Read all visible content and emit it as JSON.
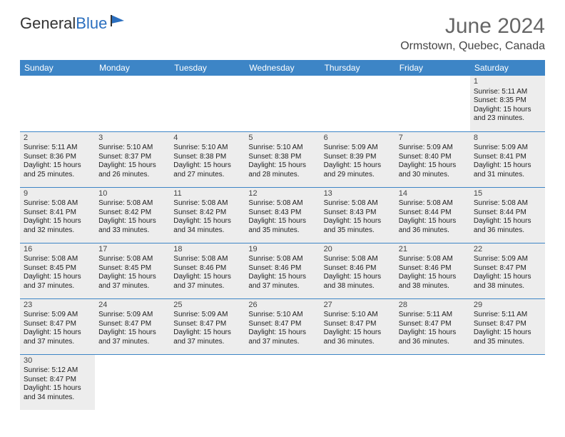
{
  "logo": {
    "text1": "General",
    "text2": "Blue"
  },
  "title": {
    "month": "June 2024",
    "location": "Ormstown, Quebec, Canada"
  },
  "colors": {
    "header_bg": "#3d85c6",
    "row_bg": "#ededed",
    "border": "#3d85c6"
  },
  "calendar": {
    "columns": [
      "Sunday",
      "Monday",
      "Tuesday",
      "Wednesday",
      "Thursday",
      "Friday",
      "Saturday"
    ],
    "weeks": [
      [
        null,
        null,
        null,
        null,
        null,
        null,
        {
          "n": "1",
          "sr": "Sunrise: 5:11 AM",
          "ss": "Sunset: 8:35 PM",
          "d1": "Daylight: 15 hours",
          "d2": "and 23 minutes."
        }
      ],
      [
        {
          "n": "2",
          "sr": "Sunrise: 5:11 AM",
          "ss": "Sunset: 8:36 PM",
          "d1": "Daylight: 15 hours",
          "d2": "and 25 minutes."
        },
        {
          "n": "3",
          "sr": "Sunrise: 5:10 AM",
          "ss": "Sunset: 8:37 PM",
          "d1": "Daylight: 15 hours",
          "d2": "and 26 minutes."
        },
        {
          "n": "4",
          "sr": "Sunrise: 5:10 AM",
          "ss": "Sunset: 8:38 PM",
          "d1": "Daylight: 15 hours",
          "d2": "and 27 minutes."
        },
        {
          "n": "5",
          "sr": "Sunrise: 5:10 AM",
          "ss": "Sunset: 8:38 PM",
          "d1": "Daylight: 15 hours",
          "d2": "and 28 minutes."
        },
        {
          "n": "6",
          "sr": "Sunrise: 5:09 AM",
          "ss": "Sunset: 8:39 PM",
          "d1": "Daylight: 15 hours",
          "d2": "and 29 minutes."
        },
        {
          "n": "7",
          "sr": "Sunrise: 5:09 AM",
          "ss": "Sunset: 8:40 PM",
          "d1": "Daylight: 15 hours",
          "d2": "and 30 minutes."
        },
        {
          "n": "8",
          "sr": "Sunrise: 5:09 AM",
          "ss": "Sunset: 8:41 PM",
          "d1": "Daylight: 15 hours",
          "d2": "and 31 minutes."
        }
      ],
      [
        {
          "n": "9",
          "sr": "Sunrise: 5:08 AM",
          "ss": "Sunset: 8:41 PM",
          "d1": "Daylight: 15 hours",
          "d2": "and 32 minutes."
        },
        {
          "n": "10",
          "sr": "Sunrise: 5:08 AM",
          "ss": "Sunset: 8:42 PM",
          "d1": "Daylight: 15 hours",
          "d2": "and 33 minutes."
        },
        {
          "n": "11",
          "sr": "Sunrise: 5:08 AM",
          "ss": "Sunset: 8:42 PM",
          "d1": "Daylight: 15 hours",
          "d2": "and 34 minutes."
        },
        {
          "n": "12",
          "sr": "Sunrise: 5:08 AM",
          "ss": "Sunset: 8:43 PM",
          "d1": "Daylight: 15 hours",
          "d2": "and 35 minutes."
        },
        {
          "n": "13",
          "sr": "Sunrise: 5:08 AM",
          "ss": "Sunset: 8:43 PM",
          "d1": "Daylight: 15 hours",
          "d2": "and 35 minutes."
        },
        {
          "n": "14",
          "sr": "Sunrise: 5:08 AM",
          "ss": "Sunset: 8:44 PM",
          "d1": "Daylight: 15 hours",
          "d2": "and 36 minutes."
        },
        {
          "n": "15",
          "sr": "Sunrise: 5:08 AM",
          "ss": "Sunset: 8:44 PM",
          "d1": "Daylight: 15 hours",
          "d2": "and 36 minutes."
        }
      ],
      [
        {
          "n": "16",
          "sr": "Sunrise: 5:08 AM",
          "ss": "Sunset: 8:45 PM",
          "d1": "Daylight: 15 hours",
          "d2": "and 37 minutes."
        },
        {
          "n": "17",
          "sr": "Sunrise: 5:08 AM",
          "ss": "Sunset: 8:45 PM",
          "d1": "Daylight: 15 hours",
          "d2": "and 37 minutes."
        },
        {
          "n": "18",
          "sr": "Sunrise: 5:08 AM",
          "ss": "Sunset: 8:46 PM",
          "d1": "Daylight: 15 hours",
          "d2": "and 37 minutes."
        },
        {
          "n": "19",
          "sr": "Sunrise: 5:08 AM",
          "ss": "Sunset: 8:46 PM",
          "d1": "Daylight: 15 hours",
          "d2": "and 37 minutes."
        },
        {
          "n": "20",
          "sr": "Sunrise: 5:08 AM",
          "ss": "Sunset: 8:46 PM",
          "d1": "Daylight: 15 hours",
          "d2": "and 38 minutes."
        },
        {
          "n": "21",
          "sr": "Sunrise: 5:08 AM",
          "ss": "Sunset: 8:46 PM",
          "d1": "Daylight: 15 hours",
          "d2": "and 38 minutes."
        },
        {
          "n": "22",
          "sr": "Sunrise: 5:09 AM",
          "ss": "Sunset: 8:47 PM",
          "d1": "Daylight: 15 hours",
          "d2": "and 38 minutes."
        }
      ],
      [
        {
          "n": "23",
          "sr": "Sunrise: 5:09 AM",
          "ss": "Sunset: 8:47 PM",
          "d1": "Daylight: 15 hours",
          "d2": "and 37 minutes."
        },
        {
          "n": "24",
          "sr": "Sunrise: 5:09 AM",
          "ss": "Sunset: 8:47 PM",
          "d1": "Daylight: 15 hours",
          "d2": "and 37 minutes."
        },
        {
          "n": "25",
          "sr": "Sunrise: 5:09 AM",
          "ss": "Sunset: 8:47 PM",
          "d1": "Daylight: 15 hours",
          "d2": "and 37 minutes."
        },
        {
          "n": "26",
          "sr": "Sunrise: 5:10 AM",
          "ss": "Sunset: 8:47 PM",
          "d1": "Daylight: 15 hours",
          "d2": "and 37 minutes."
        },
        {
          "n": "27",
          "sr": "Sunrise: 5:10 AM",
          "ss": "Sunset: 8:47 PM",
          "d1": "Daylight: 15 hours",
          "d2": "and 36 minutes."
        },
        {
          "n": "28",
          "sr": "Sunrise: 5:11 AM",
          "ss": "Sunset: 8:47 PM",
          "d1": "Daylight: 15 hours",
          "d2": "and 36 minutes."
        },
        {
          "n": "29",
          "sr": "Sunrise: 5:11 AM",
          "ss": "Sunset: 8:47 PM",
          "d1": "Daylight: 15 hours",
          "d2": "and 35 minutes."
        }
      ],
      [
        {
          "n": "30",
          "sr": "Sunrise: 5:12 AM",
          "ss": "Sunset: 8:47 PM",
          "d1": "Daylight: 15 hours",
          "d2": "and 34 minutes."
        },
        null,
        null,
        null,
        null,
        null,
        null
      ]
    ]
  }
}
